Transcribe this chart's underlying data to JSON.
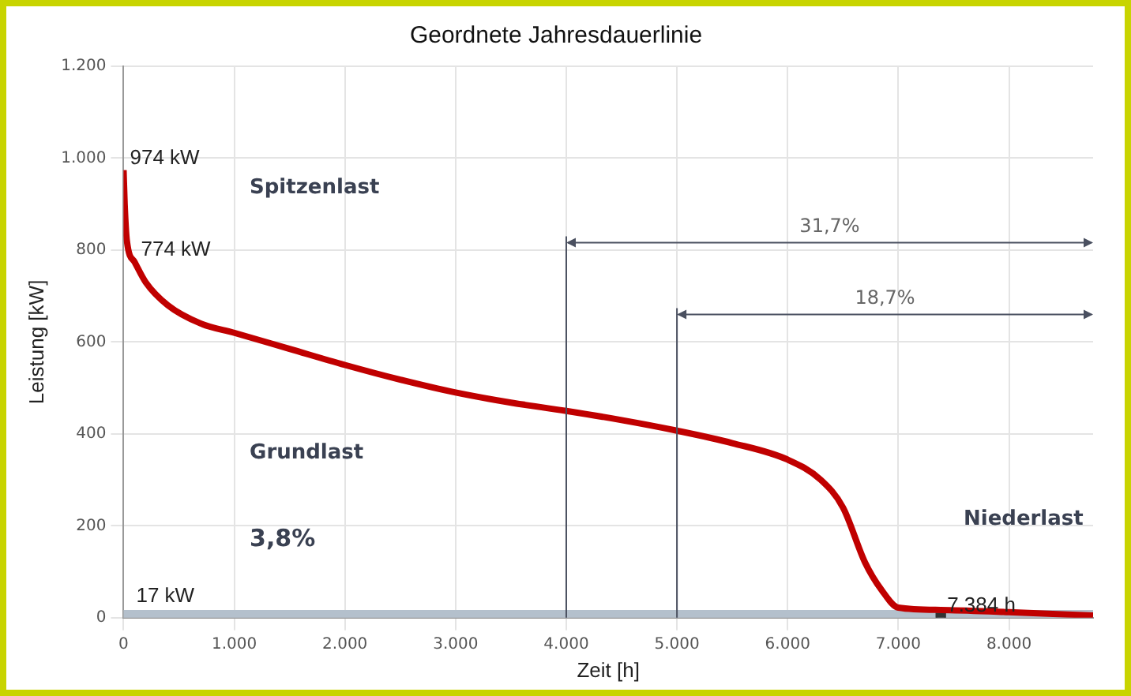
{
  "chart_data": {
    "type": "line",
    "title": "Geordnete Jahresdauerlinie",
    "xlabel": "Zeit [h]",
    "ylabel": "Leistung [kW]",
    "xlim": [
      0,
      8760
    ],
    "xticks": [
      0,
      {
        "value": 1000,
        "label": "1.000"
      },
      {
        "value": 2000,
        "label": "2.000"
      },
      {
        "value": 3000,
        "label": "3.000"
      },
      {
        "value": 4000,
        "label": "4.000"
      },
      {
        "value": 5000,
        "label": "5.000"
      },
      {
        "value": 6000,
        "label": "6.000"
      },
      {
        "value": 7000,
        "label": "7.000"
      },
      {
        "value": 8000,
        "label": "8.000"
      }
    ],
    "ylim": [
      0,
      1200
    ],
    "yticks": [
      0,
      200,
      400,
      600,
      800,
      {
        "value": 1000,
        "label": "1.000"
      },
      {
        "value": 1200,
        "label": "1.200"
      }
    ],
    "grid": true,
    "legend": false,
    "series": [
      {
        "color": "#c00000",
        "marker": "none",
        "x": [
          0,
          10,
          30,
          100,
          200,
          400,
          700,
          1000,
          1500,
          2000,
          2500,
          3000,
          3500,
          4000,
          4500,
          5000,
          5500,
          6000,
          6300,
          6500,
          6700,
          6850,
          7000,
          7384,
          8000,
          8760
        ],
        "values": [
          974,
          900,
          820,
          774,
          730,
          680,
          640,
          620,
          585,
          550,
          518,
          490,
          468,
          450,
          430,
          407,
          380,
          344,
          300,
          240,
          120,
          60,
          22,
          17,
          12,
          5
        ]
      },
      {
        "type": "scatter",
        "color": "#333333",
        "marker": "square",
        "x": [
          7384
        ],
        "values": [
          0
        ]
      }
    ],
    "bands": [
      {
        "axis": "y",
        "from": 0,
        "to": 17,
        "color": "#b4c0cc",
        "label": "17 kW"
      }
    ],
    "ref_lines": [
      {
        "axis": "x",
        "value": 4000,
        "color": "#4a5060"
      },
      {
        "axis": "x",
        "value": 5000,
        "color": "#4a5060"
      }
    ],
    "annotations": [
      "31,7%",
      "18,7%",
      "Spitzenlast",
      "Grundlast",
      "3,8%",
      "Niederlast",
      {
        "text": "974 kW",
        "x": 0,
        "y": 974
      },
      {
        "text": "774 kW",
        "x": 100,
        "y": 774
      },
      {
        "text": "7.384 h",
        "x": 7384,
        "y": 0
      }
    ]
  }
}
